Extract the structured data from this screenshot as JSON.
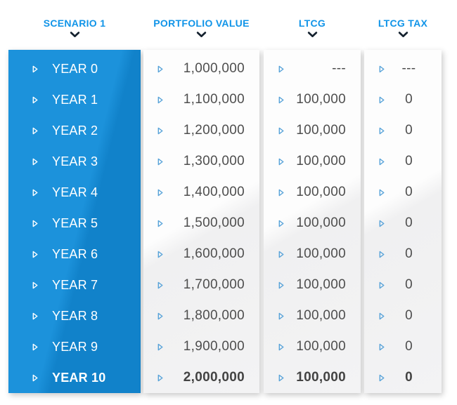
{
  "table": {
    "columns": [
      {
        "id": "scenario",
        "header": "SCENARIO 1",
        "rows": [
          "YEAR 0",
          "YEAR 1",
          "YEAR 2",
          "YEAR 3",
          "YEAR 4",
          "YEAR 5",
          "YEAR 6",
          "YEAR 7",
          "YEAR 8",
          "YEAR 9",
          "YEAR 10"
        ]
      },
      {
        "id": "portfolio_value",
        "header": "PORTFOLIO VALUE",
        "rows": [
          "1,000,000",
          "1,100,000",
          "1,200,000",
          "1,300,000",
          "1,400,000",
          "1,500,000",
          "1,600,000",
          "1,700,000",
          "1,800,000",
          "1,900,000",
          "2,000,000"
        ]
      },
      {
        "id": "ltcg",
        "header": "LTCG",
        "rows": [
          "---",
          "100,000",
          "100,000",
          "100,000",
          "100,000",
          "100,000",
          "100,000",
          "100,000",
          "100,000",
          "100,000",
          "100,000"
        ]
      },
      {
        "id": "ltcg_tax",
        "header": "LTCG TAX",
        "rows": [
          "---",
          "0",
          "0",
          "0",
          "0",
          "0",
          "0",
          "0",
          "0",
          "0",
          "0"
        ]
      }
    ]
  },
  "icons": {
    "header_sort": "chevron-down",
    "row_marker": "play-triangle-outline"
  },
  "colors": {
    "header_text": "#1094e8",
    "chevron": "#14212e",
    "scenario_column_bg": "#1588d2",
    "scenario_text": "#ffffff",
    "value_text": "#4e4e4e",
    "row_marker_blue": "#58a3d9",
    "card_bg": "#f8f8f9"
  }
}
